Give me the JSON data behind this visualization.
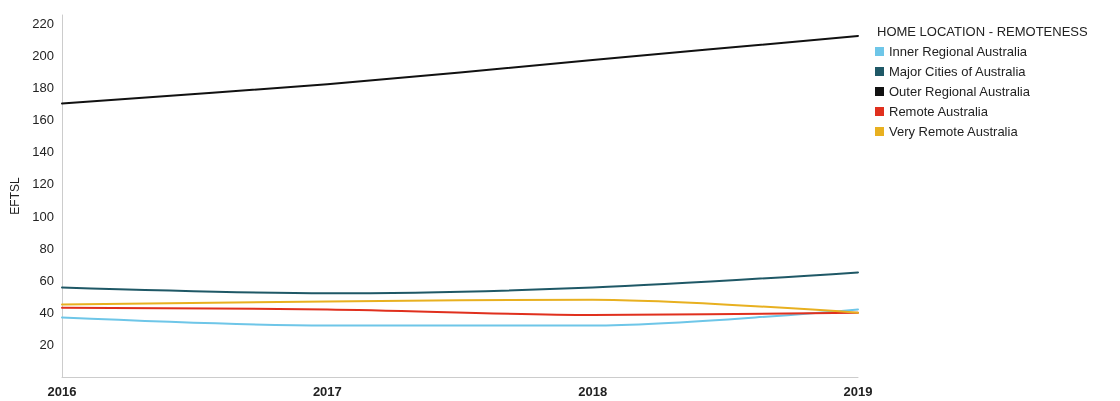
{
  "chart_data": {
    "type": "line",
    "ylabel": "EFTSL",
    "legend_title": "HOME LOCATION - REMOTENESS",
    "categories": [
      "2016",
      "2017",
      "2018",
      "2019"
    ],
    "ylim": [
      0,
      225
    ],
    "yticks": [
      20,
      40,
      60,
      80,
      100,
      120,
      140,
      160,
      180,
      200,
      220
    ],
    "grid": false,
    "legend": "right",
    "marker": "none",
    "line_style": "solid",
    "series": [
      {
        "name": "Inner Regional Australia",
        "color": "#6ec6e8",
        "values": [
          37,
          32,
          32,
          42
        ]
      },
      {
        "name": "Major Cities of Australia",
        "color": "#1f5866",
        "values": [
          55.6,
          52,
          55.6,
          65
        ]
      },
      {
        "name": "Outer Regional Australia",
        "color": "#111111",
        "values": [
          170,
          182,
          197,
          212
        ]
      },
      {
        "name": "Remote Australia",
        "color": "#e0301e",
        "values": [
          43,
          42,
          38.5,
          40
        ]
      },
      {
        "name": "Very Remote Australia",
        "color": "#e8b020",
        "values": [
          45,
          47,
          48,
          40
        ]
      }
    ]
  }
}
